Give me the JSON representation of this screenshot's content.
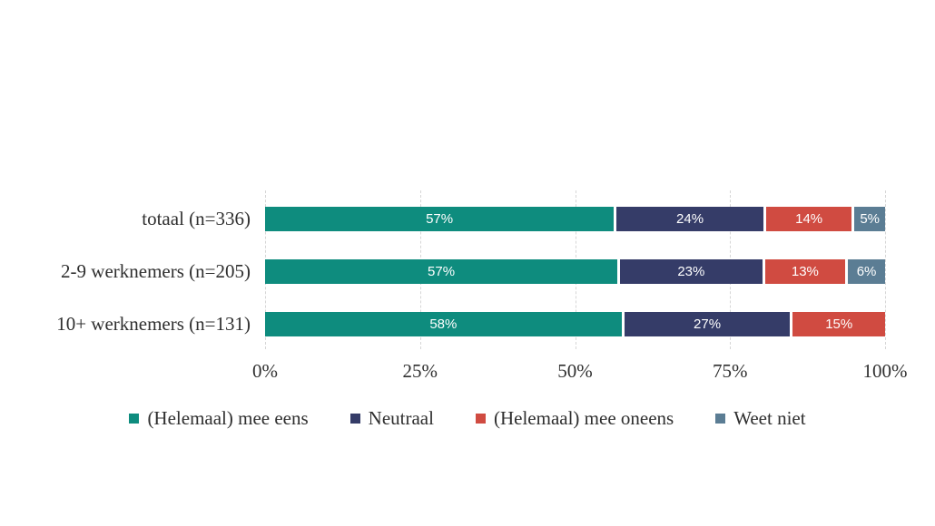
{
  "chart_data": {
    "type": "bar",
    "orientation": "horizontal",
    "stacked": true,
    "title": "",
    "xlabel": "",
    "ylabel": "",
    "xlim": [
      0,
      100
    ],
    "grid": "vertical-dashed",
    "legend_position": "bottom",
    "categories": [
      "totaal (n=336)",
      "2-9 werknemers (n=205)",
      "10+ werknemers (n=131)"
    ],
    "series": [
      {
        "name": "(Helemaal) mee eens",
        "color": "#0E8C7E",
        "values": [
          57,
          57,
          58
        ],
        "labels": [
          "57%",
          "57%",
          "58%"
        ]
      },
      {
        "name": "Neutraal",
        "color": "#353C68",
        "values": [
          24,
          23,
          27
        ],
        "labels": [
          "24%",
          "23%",
          "27%"
        ]
      },
      {
        "name": "(Helemaal) mee oneens",
        "color": "#D04B41",
        "values": [
          14,
          13,
          15
        ],
        "labels": [
          "14%",
          "13%",
          "15%"
        ]
      },
      {
        "name": "Weet niet",
        "color": "#5B7D94",
        "values": [
          5,
          6,
          0
        ],
        "labels": [
          "5%",
          "6%",
          ""
        ]
      }
    ],
    "x_ticks": [
      {
        "label": "0%",
        "value": 0
      },
      {
        "label": "25%",
        "value": 25
      },
      {
        "label": "50%",
        "value": 50
      },
      {
        "label": "75%",
        "value": 75
      },
      {
        "label": "100%",
        "value": 100
      }
    ]
  },
  "layout_colors": {
    "background": "#FFFFFF",
    "gridline": "#D6D6D6",
    "text": "#2F2F2F",
    "bar_value_text": "#FFFFFF"
  }
}
